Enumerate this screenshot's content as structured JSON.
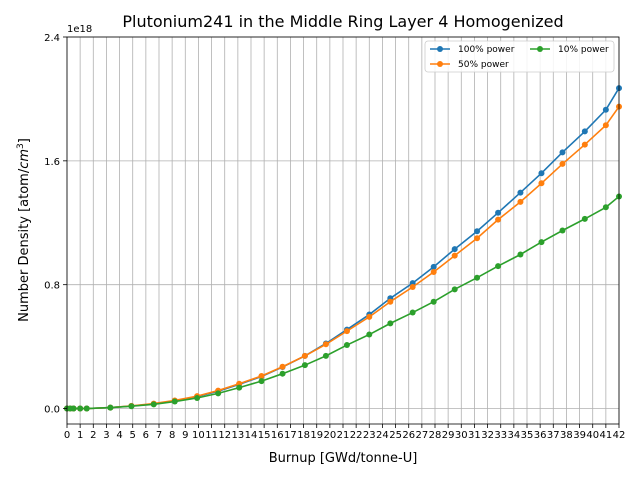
{
  "chart_data": {
    "type": "line",
    "title": "Plutonium241 in the Middle Ring Layer 4 Homogenized",
    "xlabel": "Burnup [GWd/tonne-U]",
    "ylabel_main": "Number Density [atom/",
    "ylabel_unit": "cm",
    "ylabel_exp": "3",
    "ylabel_end": "]",
    "y_offset_label": "1e18",
    "xlim": [
      0,
      42
    ],
    "ylim": [
      -0.1,
      2.4
    ],
    "x_ticks": [
      0,
      1,
      2,
      3,
      4,
      5,
      6,
      7,
      8,
      9,
      10,
      11,
      12,
      13,
      14,
      15,
      16,
      17,
      18,
      19,
      20,
      21,
      22,
      23,
      24,
      25,
      26,
      27,
      28,
      29,
      30,
      31,
      32,
      33,
      34,
      35,
      36,
      37,
      38,
      39,
      40,
      41,
      42
    ],
    "y_ticks": [
      {
        "value": 0.0,
        "label": "0.0"
      },
      {
        "value": 0.8,
        "label": "0.8"
      },
      {
        "value": 1.6,
        "label": "1.6"
      },
      {
        "value": 2.4,
        "label": "2.4"
      }
    ],
    "grid": true,
    "legend_position": "top-right",
    "series": [
      {
        "name": "100% power",
        "color": "#1f77b4",
        "x": [
          0.0,
          0.25,
          0.5,
          1.0,
          1.5,
          3.3,
          4.9,
          6.6,
          8.2,
          9.9,
          11.5,
          13.1,
          14.8,
          16.4,
          18.1,
          19.7,
          21.3,
          23.0,
          24.6,
          26.3,
          27.9,
          29.5,
          31.2,
          32.8,
          34.5,
          36.1,
          37.7,
          39.4,
          41.0,
          42.0
        ],
        "y": [
          0.0,
          0.0,
          0.0,
          0.0,
          0.0,
          0.006,
          0.016,
          0.03,
          0.05,
          0.077,
          0.112,
          0.156,
          0.207,
          0.268,
          0.34,
          0.42,
          0.51,
          0.607,
          0.712,
          0.81,
          0.915,
          1.03,
          1.145,
          1.265,
          1.395,
          1.52,
          1.655,
          1.79,
          1.93,
          2.07
        ]
      },
      {
        "name": "50% power",
        "color": "#ff7f0e",
        "x": [
          0.0,
          0.25,
          0.5,
          1.0,
          1.5,
          3.3,
          4.9,
          6.6,
          8.2,
          9.9,
          11.5,
          13.1,
          14.8,
          16.4,
          18.1,
          19.7,
          21.3,
          23.0,
          24.6,
          26.3,
          27.9,
          29.5,
          31.2,
          32.8,
          34.5,
          36.1,
          37.7,
          39.4,
          41.0,
          42.0
        ],
        "y": [
          0.0,
          0.0,
          0.0,
          0.0,
          0.0,
          0.006,
          0.017,
          0.032,
          0.052,
          0.08,
          0.116,
          0.16,
          0.21,
          0.27,
          0.34,
          0.415,
          0.5,
          0.592,
          0.69,
          0.785,
          0.882,
          0.988,
          1.1,
          1.22,
          1.335,
          1.455,
          1.58,
          1.705,
          1.83,
          1.95
        ]
      },
      {
        "name": "10% power",
        "color": "#2ca02c",
        "x": [
          0.0,
          0.25,
          0.5,
          1.0,
          1.5,
          3.3,
          4.9,
          6.6,
          8.2,
          9.9,
          11.5,
          13.1,
          14.8,
          16.4,
          18.1,
          19.7,
          21.3,
          23.0,
          24.6,
          26.3,
          27.9,
          29.5,
          31.2,
          32.8,
          34.5,
          36.1,
          37.7,
          39.4,
          41.0,
          42.0
        ],
        "y": [
          0.0,
          0.0,
          0.0,
          0.0,
          0.0,
          0.006,
          0.015,
          0.027,
          0.045,
          0.068,
          0.098,
          0.135,
          0.177,
          0.225,
          0.28,
          0.34,
          0.41,
          0.478,
          0.55,
          0.62,
          0.69,
          0.77,
          0.845,
          0.92,
          0.995,
          1.075,
          1.15,
          1.225,
          1.3,
          1.37
        ]
      }
    ]
  }
}
